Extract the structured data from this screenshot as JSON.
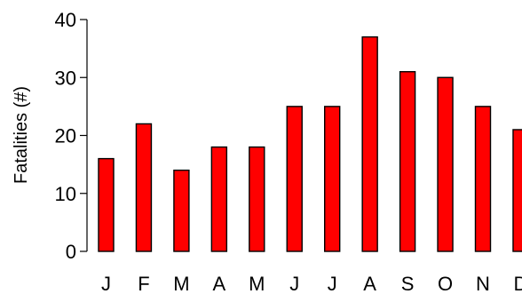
{
  "chart_data": {
    "type": "bar",
    "categories": [
      "J",
      "F",
      "M",
      "A",
      "M",
      "J",
      "J",
      "A",
      "S",
      "O",
      "N",
      "D"
    ],
    "values": [
      16,
      22,
      14,
      18,
      18,
      25,
      25,
      37,
      31,
      30,
      25,
      21
    ],
    "title": "",
    "xlabel": "",
    "ylabel": "Fatalities (#)",
    "ylim": [
      0,
      40
    ],
    "yticks": [
      0,
      10,
      20,
      30,
      40
    ],
    "grid": false,
    "legend": "none",
    "bar_color": "#ff0000",
    "bar_edge_color": "#000000"
  }
}
